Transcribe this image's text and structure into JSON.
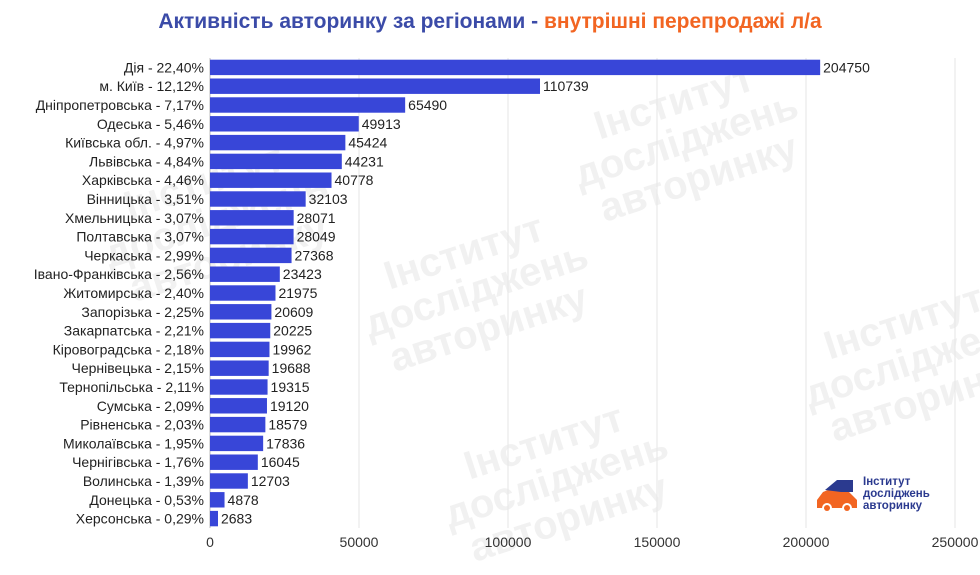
{
  "title": {
    "part1": "Активність авторинку за регіонами - ",
    "part2": "внутрішні перепродажі л/а"
  },
  "colors": {
    "bar": "#3846d8",
    "title_primary": "#3b4ba8",
    "title_accent": "#f26522",
    "grid": "#e6e6e6"
  },
  "logo": {
    "line1": "Інститут",
    "line2": "досліджень",
    "line3": "авторинку"
  },
  "chart_data": {
    "type": "bar",
    "orientation": "horizontal",
    "title": "Активність авторинку за регіонами - внутрішні перепродажі л/а",
    "xlabel": "",
    "ylabel": "",
    "xlim": [
      0,
      250000
    ],
    "xticks": [
      0,
      50000,
      100000,
      150000,
      200000,
      250000
    ],
    "grid": true,
    "categories": [
      "Дія - 22,40%",
      "м. Київ - 12,12%",
      "Дніпропетровська - 7,17%",
      "Одеська - 5,46%",
      "Київська обл. - 4,97%",
      "Львівська - 4,84%",
      "Харківська - 4,46%",
      "Вінницька - 3,51%",
      "Хмельницька - 3,07%",
      "Полтавська - 3,07%",
      "Черкаська - 2,99%",
      "Івано-Франківська - 2,56%",
      "Житомирська - 2,40%",
      "Запорізька - 2,25%",
      "Закарпатська - 2,21%",
      "Кіровоградська - 2,18%",
      "Чернівецька - 2,15%",
      "Тернопільська - 2,11%",
      "Сумська - 2,09%",
      "Рівненська - 2,03%",
      "Миколаївська - 1,95%",
      "Чернігівська - 1,76%",
      "Волинська - 1,39%",
      "Донецька - 0,53%",
      "Херсонська - 0,29%"
    ],
    "values": [
      204750,
      110739,
      65490,
      49913,
      45424,
      44231,
      40778,
      32103,
      28071,
      28049,
      27368,
      23423,
      21975,
      20609,
      20225,
      19962,
      19688,
      19315,
      19120,
      18579,
      17836,
      16045,
      12703,
      4878,
      2683
    ]
  }
}
